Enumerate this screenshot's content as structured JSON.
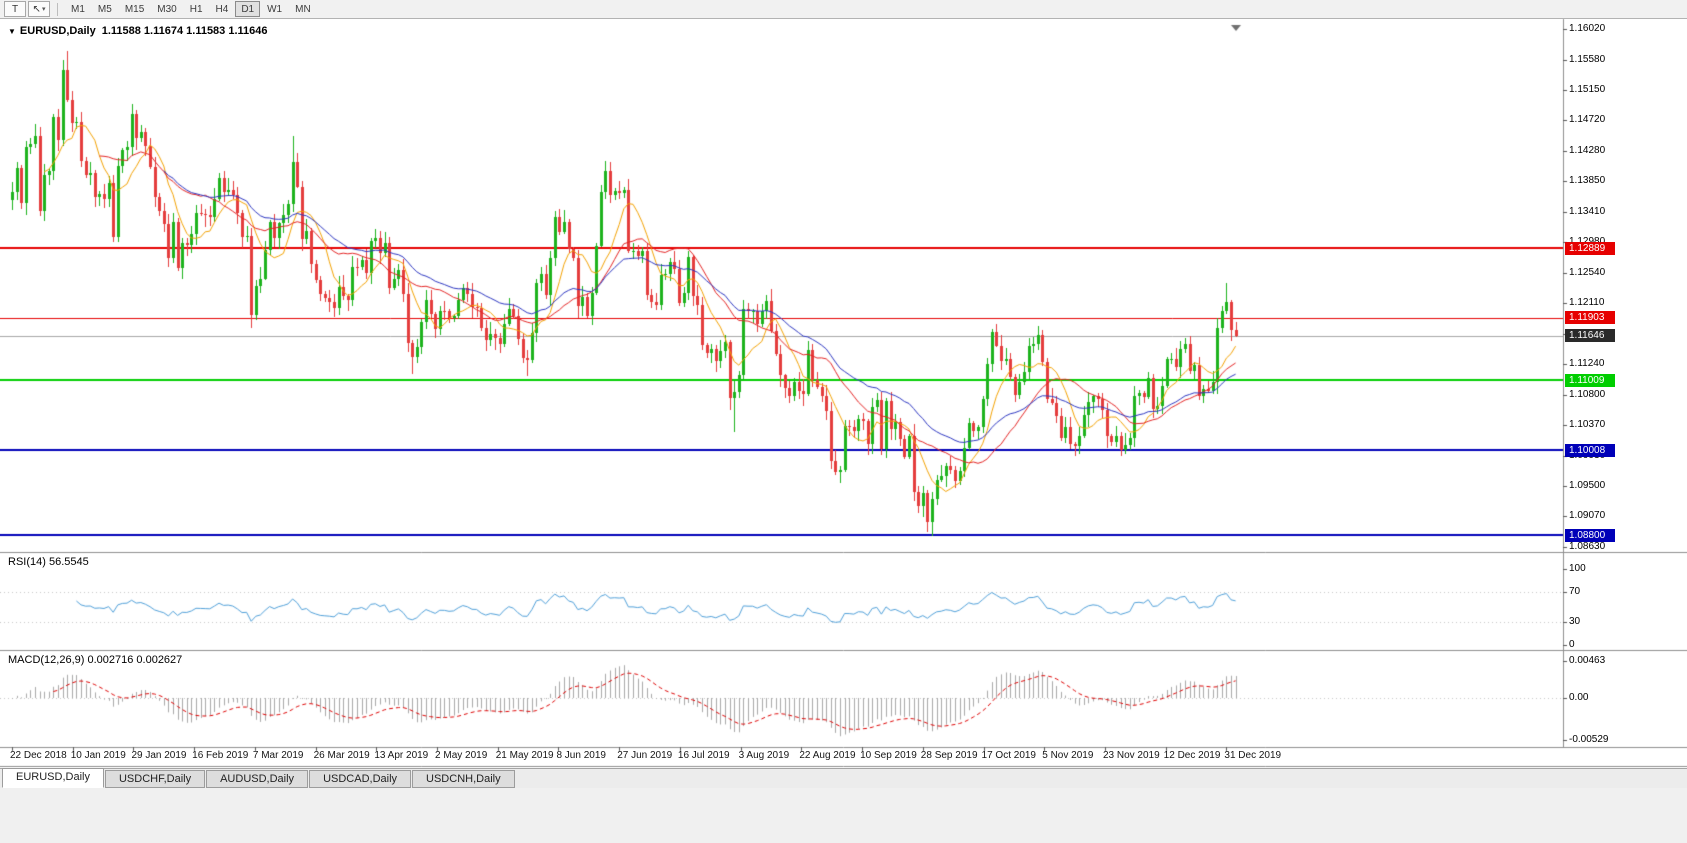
{
  "toolbar": {
    "tools": [
      {
        "name": "text-tool",
        "glyph": "T"
      },
      {
        "name": "cursor-tool",
        "glyph": "↖"
      }
    ],
    "timeframes": [
      "M1",
      "M5",
      "M15",
      "M30",
      "H1",
      "H4",
      "D1",
      "W1",
      "MN"
    ],
    "active_timeframe": "D1"
  },
  "chart": {
    "symbol_title": "EURUSD,Daily",
    "ohlc_text": "1.11588 1.11674 1.11583 1.11646",
    "current_price": 1.11646,
    "current_price_label": "1.11646"
  },
  "icons": {
    "expander": "▼",
    "caret": "▾"
  },
  "hlines": [
    {
      "price": 1.12889,
      "label": "1.12889",
      "color": "#e60000",
      "width": 2
    },
    {
      "price": 1.11903,
      "label": "1.11903",
      "color": "#e60000",
      "width": 1
    },
    {
      "price": 1.11009,
      "label": "1.11009",
      "color": "#00ce00",
      "width": 2
    },
    {
      "price": 1.10008,
      "label": "1.10008",
      "color": "#0000b8",
      "width": 2
    },
    {
      "price": 1.088,
      "label": "1.08800",
      "color": "#0000b8",
      "width": 2
    }
  ],
  "rsi_pane": {
    "title": "RSI(14) 56.5545",
    "axis_labels": [
      "100",
      "70",
      "30",
      "0"
    ]
  },
  "macd_pane": {
    "title": "MACD(12,26,9) 0.002716 0.002627",
    "axis_labels": [
      "0.00463",
      "0.00",
      "-0.00529"
    ]
  },
  "tabs": [
    {
      "label": "EURUSD,Daily",
      "active": true
    },
    {
      "label": "USDCHF,Daily",
      "active": false
    },
    {
      "label": "AUDUSD,Daily",
      "active": false
    },
    {
      "label": "USDCAD,Daily",
      "active": false
    },
    {
      "label": "USDCNH,Daily",
      "active": false
    }
  ],
  "chart_data": {
    "type": "candlestick",
    "symbol": "EURUSD",
    "period": "Daily",
    "title": "EURUSD,Daily",
    "visible_price_range": [
      1.0863,
      1.1602
    ],
    "price_axis_labels": [
      "1.16020",
      "1.15580",
      "1.15150",
      "1.14720",
      "1.14280",
      "1.13850",
      "1.13410",
      "1.12980",
      "1.12540",
      "1.12110",
      "1.11670",
      "1.11240",
      "1.10800",
      "1.10370",
      "1.09930",
      "1.09500",
      "1.09070",
      "1.08630"
    ],
    "date_labels": [
      "22 Dec 2018",
      "10 Jan 2019",
      "29 Jan 2019",
      "16 Feb 2019",
      "7 Mar 2019",
      "26 Mar 2019",
      "13 Apr 2019",
      "2 May 2019",
      "21 May 2019",
      "8 Jun 2019",
      "27 Jun 2019",
      "16 Jul 2019",
      "3 Aug 2019",
      "22 Aug 2019",
      "10 Sep 2019",
      "28 Sep 2019",
      "17 Oct 2019",
      "5 Nov 2019",
      "23 Nov 2019",
      "12 Dec 2019",
      "31 Dec 2019"
    ],
    "open_first": 1.1358,
    "closes": [
      1.137,
      1.1404,
      1.1354,
      1.1433,
      1.1438,
      1.145,
      1.1342,
      1.1394,
      1.1399,
      1.1476,
      1.1444,
      1.1544,
      1.15,
      1.1468,
      1.147,
      1.1413,
      1.1393,
      1.1396,
      1.1363,
      1.1367,
      1.136,
      1.1383,
      1.1305,
      1.1406,
      1.143,
      1.1434,
      1.1481,
      1.1446,
      1.1455,
      1.1435,
      1.1405,
      1.1363,
      1.1343,
      1.1324,
      1.1276,
      1.1326,
      1.1261,
      1.1296,
      1.1294,
      1.131,
      1.134,
      1.1338,
      1.1336,
      1.1334,
      1.136,
      1.139,
      1.137,
      1.1373,
      1.1365,
      1.134,
      1.1305,
      1.1307,
      1.1194,
      1.1235,
      1.1246,
      1.1287,
      1.1327,
      1.1304,
      1.1325,
      1.1337,
      1.1353,
      1.1412,
      1.1377,
      1.1302,
      1.1314,
      1.1267,
      1.1244,
      1.1224,
      1.1218,
      1.1213,
      1.1204,
      1.1234,
      1.1221,
      1.1216,
      1.1263,
      1.1262,
      1.1273,
      1.1254,
      1.1299,
      1.1304,
      1.1283,
      1.1296,
      1.1232,
      1.1245,
      1.1258,
      1.1224,
      1.1154,
      1.1134,
      1.1149,
      1.1184,
      1.1215,
      1.1195,
      1.1174,
      1.12,
      1.1199,
      1.119,
      1.1193,
      1.1215,
      1.1233,
      1.1224,
      1.1205,
      1.1204,
      1.1175,
      1.1158,
      1.1167,
      1.1161,
      1.1153,
      1.1181,
      1.1203,
      1.1193,
      1.116,
      1.1132,
      1.113,
      1.1168,
      1.124,
      1.1252,
      1.1222,
      1.1276,
      1.1334,
      1.1312,
      1.1327,
      1.1288,
      1.1276,
      1.1207,
      1.1219,
      1.1193,
      1.1226,
      1.1293,
      1.1369,
      1.1399,
      1.1365,
      1.1371,
      1.1368,
      1.1373,
      1.1285,
      1.1285,
      1.1278,
      1.1285,
      1.1223,
      1.1213,
      1.1208,
      1.1251,
      1.1252,
      1.127,
      1.1259,
      1.1211,
      1.1225,
      1.1277,
      1.1221,
      1.1208,
      1.1151,
      1.114,
      1.1146,
      1.1128,
      1.1143,
      1.1155,
      1.1075,
      1.1084,
      1.1108,
      1.1203,
      1.12,
      1.12,
      1.1181,
      1.1199,
      1.1214,
      1.1171,
      1.1139,
      1.1108,
      1.109,
      1.1078,
      1.1099,
      1.1086,
      1.1081,
      1.1144,
      1.1101,
      1.1091,
      1.1079,
      1.1057,
      1.0985,
      1.097,
      1.0973,
      1.1035,
      1.1034,
      1.1028,
      1.1046,
      1.1043,
      1.101,
      1.1063,
      1.1073,
      1.1003,
      1.1072,
      1.1031,
      1.1042,
      1.1017,
      1.0992,
      1.1021,
      1.0942,
      1.0921,
      1.094,
      1.0899,
      1.0932,
      1.0959,
      1.0965,
      1.0979,
      1.0973,
      1.0957,
      1.0972,
      1.1004,
      1.104,
      1.1028,
      1.1034,
      1.1074,
      1.1124,
      1.117,
      1.115,
      1.1128,
      1.1131,
      1.1105,
      1.108,
      1.1099,
      1.1113,
      1.115,
      1.1152,
      1.1166,
      1.1127,
      1.1074,
      1.1068,
      1.105,
      1.1018,
      1.1034,
      1.101,
      1.1007,
      1.1022,
      1.1051,
      1.107,
      1.1078,
      1.1074,
      1.1058,
      1.1021,
      1.1013,
      1.1022,
      1.1001,
      1.1009,
      1.1018,
      1.1078,
      1.1082,
      1.1077,
      1.1104,
      1.106,
      1.1064,
      1.1093,
      1.1131,
      1.1131,
      1.112,
      1.1145,
      1.1152,
      1.1114,
      1.1122,
      1.1078,
      1.1089,
      1.1086,
      1.1098,
      1.1176,
      1.1199,
      1.1212,
      1.1172,
      1.11646
    ],
    "wick_overrides": {
      "11": {
        "h": 1.1558
      },
      "12": {
        "h": 1.157
      },
      "52": {
        "l": 1.1176
      },
      "61": {
        "h": 1.145
      },
      "87": {
        "l": 1.111
      },
      "112": {
        "l": 1.1107
      },
      "130": {
        "h": 1.1412
      },
      "157": {
        "l": 1.1027
      },
      "199": {
        "l": 1.0885
      },
      "200": {
        "l": 1.0879
      },
      "264": {
        "h": 1.1239
      }
    },
    "up_color": "#1db31d",
    "down_color": "#e43d3d",
    "moving_averages": [
      {
        "period": 8,
        "type": "sma",
        "color": "#f2a100"
      },
      {
        "period": 20,
        "type": "sma",
        "color": "#e32222"
      },
      {
        "period": 34,
        "type": "ema",
        "color": "#2b35c0"
      }
    ],
    "rsi": {
      "period": 14,
      "value": 56.5545,
      "color": "#4f9fd8",
      "levels": [
        70,
        30
      ]
    },
    "macd": {
      "fast": 12,
      "slow": 26,
      "signal": 9,
      "value": 0.002716,
      "signal_value": 0.002627,
      "hist_color": "#a9a9a9",
      "signal_color": "#dd0000"
    }
  }
}
